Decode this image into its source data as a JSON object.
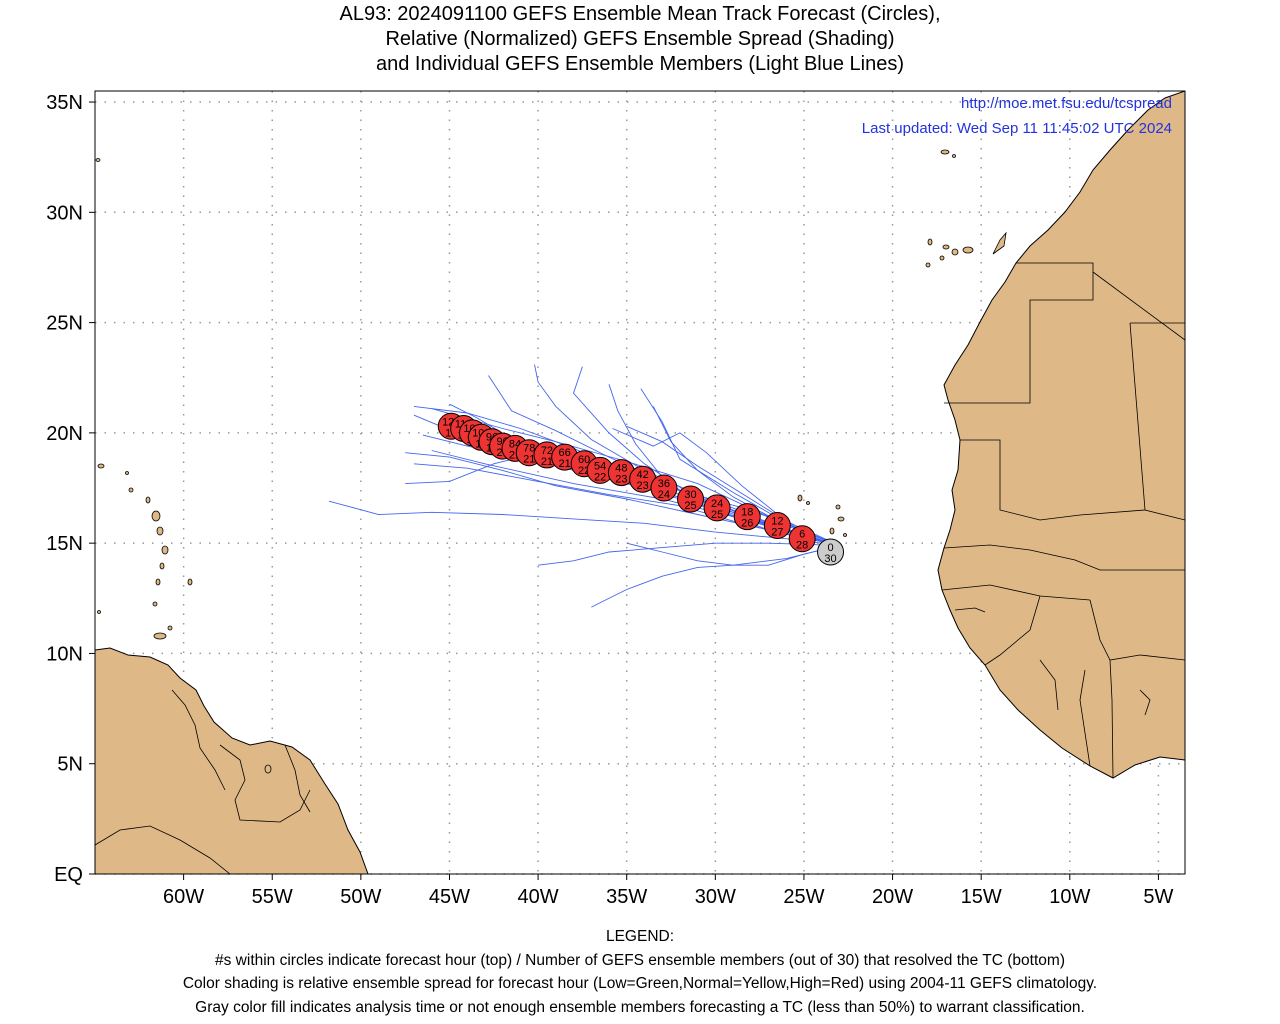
{
  "title": {
    "line1": "AL93: 2024091100 GEFS Ensemble Mean Track Forecast (Circles),",
    "line2": "Relative (Normalized) GEFS Ensemble Spread (Shading)",
    "line3": "and Individual GEFS Ensemble Members (Light Blue Lines)"
  },
  "credits": {
    "url": "http://moe.met.fsu.edu/tcspread",
    "updated": "Last updated: Wed Sep 11 11:45:02 UTC 2024"
  },
  "axes": {
    "lat_labels": [
      "EQ",
      "5N",
      "10N",
      "15N",
      "20N",
      "25N",
      "30N",
      "35N"
    ],
    "lon_labels": [
      "60W",
      "55W",
      "50W",
      "45W",
      "40W",
      "35W",
      "30W",
      "25W",
      "20W",
      "15W",
      "10W",
      "5W"
    ],
    "lon_range": [
      -65,
      -3.5
    ],
    "lat_range": [
      0,
      35.5
    ]
  },
  "colors": {
    "land": "#deb887",
    "member_track": "#4466ee",
    "circle_red": "#ee3333",
    "circle_gray": "#cccccc",
    "url_text": "#2233dd"
  },
  "chart_data": {
    "type": "map",
    "mean_track": [
      {
        "hour": 0,
        "members": 30,
        "lon": -23.5,
        "lat": 14.6,
        "fill": "gray"
      },
      {
        "hour": 6,
        "members": 28,
        "lon": -25.1,
        "lat": 15.2,
        "fill": "red"
      },
      {
        "hour": 12,
        "members": 27,
        "lon": -26.5,
        "lat": 15.8,
        "fill": "red"
      },
      {
        "hour": 18,
        "members": 26,
        "lon": -28.2,
        "lat": 16.2,
        "fill": "red"
      },
      {
        "hour": 24,
        "members": 25,
        "lon": -29.9,
        "lat": 16.6,
        "fill": "red"
      },
      {
        "hour": 30,
        "members": 25,
        "lon": -31.4,
        "lat": 17.0,
        "fill": "red"
      },
      {
        "hour": 36,
        "members": 24,
        "lon": -32.9,
        "lat": 17.5,
        "fill": "red"
      },
      {
        "hour": 42,
        "members": 23,
        "lon": -34.1,
        "lat": 17.9,
        "fill": "red"
      },
      {
        "hour": 48,
        "members": 23,
        "lon": -35.3,
        "lat": 18.2,
        "fill": "red"
      },
      {
        "hour": 54,
        "members": 22,
        "lon": -36.5,
        "lat": 18.3,
        "fill": "red"
      },
      {
        "hour": 60,
        "members": 22,
        "lon": -37.4,
        "lat": 18.6,
        "fill": "red"
      },
      {
        "hour": 66,
        "members": 21,
        "lon": -38.5,
        "lat": 18.9,
        "fill": "red"
      },
      {
        "hour": 72,
        "members": 21,
        "lon": -39.5,
        "lat": 19.0,
        "fill": "red"
      },
      {
        "hour": 78,
        "members": 21,
        "lon": -40.5,
        "lat": 19.1,
        "fill": "red"
      },
      {
        "hour": 84,
        "members": 21,
        "lon": -41.3,
        "lat": 19.3,
        "fill": "red"
      },
      {
        "hour": 90,
        "members": 20,
        "lon": -42.0,
        "lat": 19.4,
        "fill": "red"
      },
      {
        "hour": 96,
        "members": 19,
        "lon": -42.6,
        "lat": 19.6,
        "fill": "red"
      },
      {
        "hour": 102,
        "members": 19,
        "lon": -43.2,
        "lat": 19.8,
        "fill": "red"
      },
      {
        "hour": 108,
        "members": 19,
        "lon": -43.7,
        "lat": 20.0,
        "fill": "red"
      },
      {
        "hour": 114,
        "members": 18,
        "lon": -44.2,
        "lat": 20.2,
        "fill": "red"
      },
      {
        "hour": 120,
        "members": 18,
        "lon": -44.9,
        "lat": 20.3,
        "fill": "red"
      }
    ],
    "member_tracks": [
      [
        [
          -23.0,
          14.9
        ],
        [
          -26,
          15.5
        ],
        [
          -30,
          16.5
        ],
        [
          -34,
          17.5
        ],
        [
          -38,
          18.4
        ],
        [
          -41,
          19.0
        ],
        [
          -44,
          19.8
        ],
        [
          -47,
          20.8
        ]
      ],
      [
        [
          -23.0,
          14.9
        ],
        [
          -27,
          15.8
        ],
        [
          -31,
          17.0
        ],
        [
          -34,
          18.6
        ],
        [
          -36,
          20.0
        ],
        [
          -38,
          21.8
        ],
        [
          -37.5,
          23.0
        ]
      ],
      [
        [
          -23.0,
          14.9
        ],
        [
          -26,
          15.2
        ],
        [
          -30,
          15.5
        ],
        [
          -34,
          15.9
        ],
        [
          -38,
          16.1
        ],
        [
          -42,
          16.3
        ],
        [
          -46,
          16.4
        ],
        [
          -49,
          16.3
        ],
        [
          -51.8,
          16.9
        ]
      ],
      [
        [
          -23.0,
          14.9
        ],
        [
          -26,
          14.3
        ],
        [
          -29,
          14.0
        ],
        [
          -31,
          13.9
        ],
        [
          -33,
          13.5
        ],
        [
          -35,
          12.9
        ],
        [
          -37,
          12.1
        ]
      ],
      [
        [
          -23.0,
          14.9
        ],
        [
          -27,
          15.6
        ],
        [
          -31,
          16.8
        ],
        [
          -33,
          18.0
        ],
        [
          -34.5,
          19.5
        ],
        [
          -35.5,
          21.0
        ],
        [
          -36,
          22.2
        ]
      ],
      [
        [
          -23.0,
          14.9
        ],
        [
          -25.5,
          15.7
        ],
        [
          -29,
          17.3
        ],
        [
          -32,
          18.8
        ],
        [
          -33,
          20.5
        ],
        [
          -34.2,
          22.0
        ]
      ],
      [
        [
          -23.0,
          14.9
        ],
        [
          -27,
          16.2
        ],
        [
          -31,
          17.7
        ],
        [
          -35,
          18.7
        ],
        [
          -39,
          19.6
        ],
        [
          -42,
          20.2
        ],
        [
          -46,
          21.1
        ]
      ],
      [
        [
          -23.0,
          14.9
        ],
        [
          -26,
          15.4
        ],
        [
          -29,
          16.0
        ],
        [
          -32,
          16.7
        ],
        [
          -36,
          17.2
        ],
        [
          -40,
          17.8
        ],
        [
          -44,
          18.4
        ],
        [
          -47,
          18.6
        ]
      ],
      [
        [
          -23.0,
          14.9
        ],
        [
          -28,
          16.0
        ],
        [
          -33,
          17.0
        ],
        [
          -38,
          17.7
        ],
        [
          -43,
          18.6
        ],
        [
          -46,
          19.2
        ]
      ],
      [
        [
          -23.0,
          14.9
        ],
        [
          -25,
          15.3
        ],
        [
          -28,
          16.1
        ],
        [
          -31,
          17.2
        ],
        [
          -34,
          18.3
        ],
        [
          -37,
          19.7
        ],
        [
          -39,
          21.2
        ],
        [
          -40,
          22.3
        ],
        [
          -40.2,
          23.1
        ]
      ],
      [
        [
          -23.0,
          14.9
        ],
        [
          -26,
          15.6
        ],
        [
          -29,
          16.6
        ],
        [
          -32,
          17.2
        ],
        [
          -35,
          17.9
        ],
        [
          -38,
          18.7
        ],
        [
          -41,
          19.5
        ],
        [
          -43.5,
          20.7
        ],
        [
          -45,
          21.3
        ]
      ],
      [
        [
          -23.0,
          14.9
        ],
        [
          -27,
          15.0
        ],
        [
          -30,
          15.0
        ],
        [
          -33,
          14.8
        ],
        [
          -36,
          14.6
        ],
        [
          -38,
          14.2
        ],
        [
          -40,
          14.0
        ]
      ],
      [
        [
          -23.0,
          14.9
        ],
        [
          -26,
          15.8
        ],
        [
          -29,
          17.1
        ],
        [
          -31,
          18.3
        ],
        [
          -32.5,
          19.6
        ],
        [
          -33.5,
          21.2
        ]
      ],
      [
        [
          -23.0,
          14.9
        ],
        [
          -26,
          15.5
        ],
        [
          -30,
          16.6
        ],
        [
          -33,
          17.8
        ],
        [
          -36,
          18.9
        ],
        [
          -39,
          20.1
        ],
        [
          -41.5,
          21.0
        ],
        [
          -42.8,
          22.6
        ]
      ],
      [
        [
          -23.0,
          14.9
        ],
        [
          -27,
          15.6
        ],
        [
          -31,
          16.3
        ],
        [
          -35,
          17.0
        ],
        [
          -39,
          17.6
        ],
        [
          -42,
          18.3
        ],
        [
          -45,
          18.9
        ],
        [
          -47.5,
          19.1
        ]
      ],
      [
        [
          -23.0,
          14.9
        ],
        [
          -26,
          16.0
        ],
        [
          -28.5,
          17.6
        ],
        [
          -30.5,
          19.1
        ],
        [
          -32,
          20.0
        ],
        [
          -33.5,
          19.4
        ],
        [
          -35.8,
          20.2
        ]
      ],
      [
        [
          -23.0,
          14.9
        ],
        [
          -25,
          14.5
        ],
        [
          -27,
          14.0
        ],
        [
          -29,
          14.0
        ],
        [
          -31,
          14.2
        ],
        [
          -33,
          14.6
        ],
        [
          -35,
          15.0
        ]
      ],
      [
        [
          -23.0,
          14.9
        ],
        [
          -27,
          15.9
        ],
        [
          -31,
          17.1
        ],
        [
          -35,
          18.2
        ],
        [
          -38,
          19.3
        ],
        [
          -41,
          20.2
        ],
        [
          -44,
          20.9
        ],
        [
          -47,
          21.2
        ]
      ],
      [
        [
          -23.0,
          14.9
        ],
        [
          -26,
          15.6
        ],
        [
          -29,
          16.4
        ],
        [
          -33,
          17.3
        ],
        [
          -37,
          18.1
        ],
        [
          -41,
          18.9
        ],
        [
          -44,
          19.4
        ],
        [
          -46.5,
          19.9
        ]
      ],
      [
        [
          -23.0,
          14.9
        ],
        [
          -25,
          15.5
        ],
        [
          -28,
          17.0
        ],
        [
          -31,
          18.5
        ],
        [
          -33,
          19.6
        ],
        [
          -35,
          20.3
        ]
      ],
      [
        [
          -23.0,
          14.9
        ],
        [
          -28,
          16.5
        ],
        [
          -33,
          17.6
        ],
        [
          -37,
          18.5
        ],
        [
          -40,
          19.1
        ],
        [
          -42.5,
          18.6
        ],
        [
          -45,
          17.8
        ],
        [
          -47.5,
          17.7
        ]
      ]
    ]
  }
}
